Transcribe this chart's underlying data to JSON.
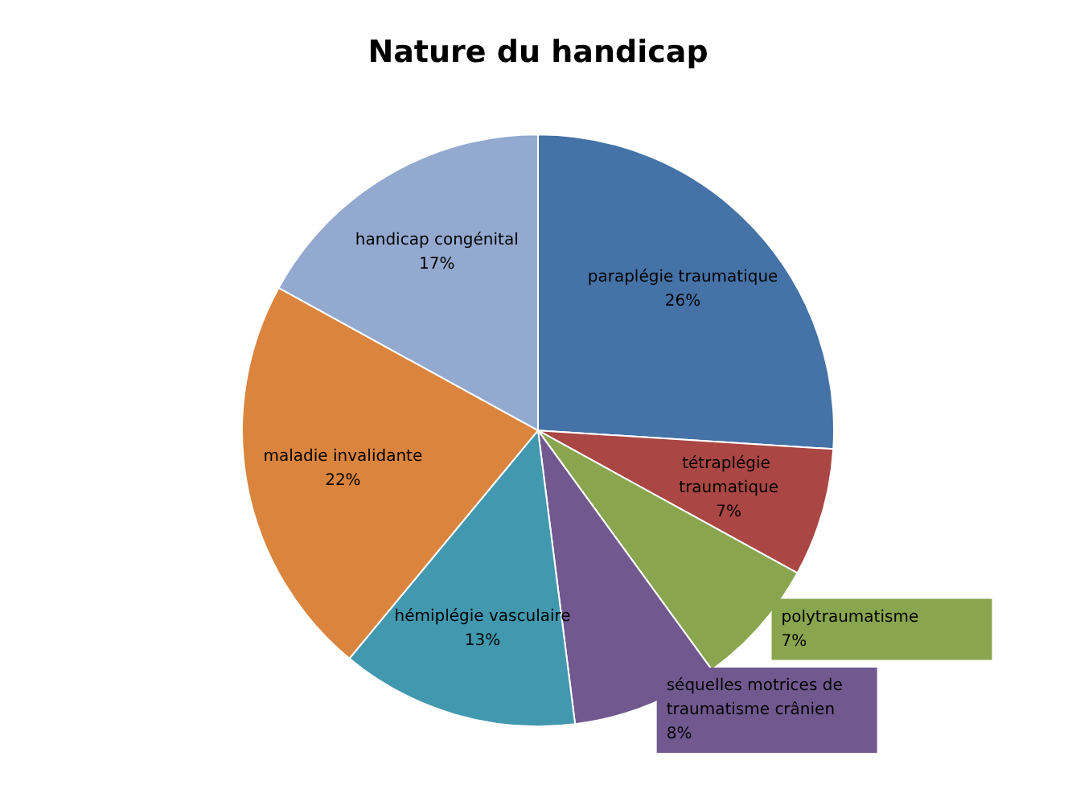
{
  "chart_data": {
    "type": "pie",
    "title": "Nature du handicap",
    "categories": [
      "paraplégie traumatique",
      "tétraplégie traumatique",
      "polytraumatisme",
      "séquelles motrices de traumatisme crânien",
      "hémiplégie vasculaire",
      "maladie invalidante",
      "handicap congénital"
    ],
    "values": [
      26,
      7,
      7,
      8,
      13,
      22,
      17
    ],
    "value_labels": [
      "26%",
      "7%",
      "7%",
      "8%",
      "13%",
      "22%",
      "17%"
    ],
    "colors": [
      "#4572a7",
      "#aa4643",
      "#89a54e",
      "#71588f",
      "#4198af",
      "#db843d",
      "#93a9cf"
    ],
    "legend": false
  }
}
